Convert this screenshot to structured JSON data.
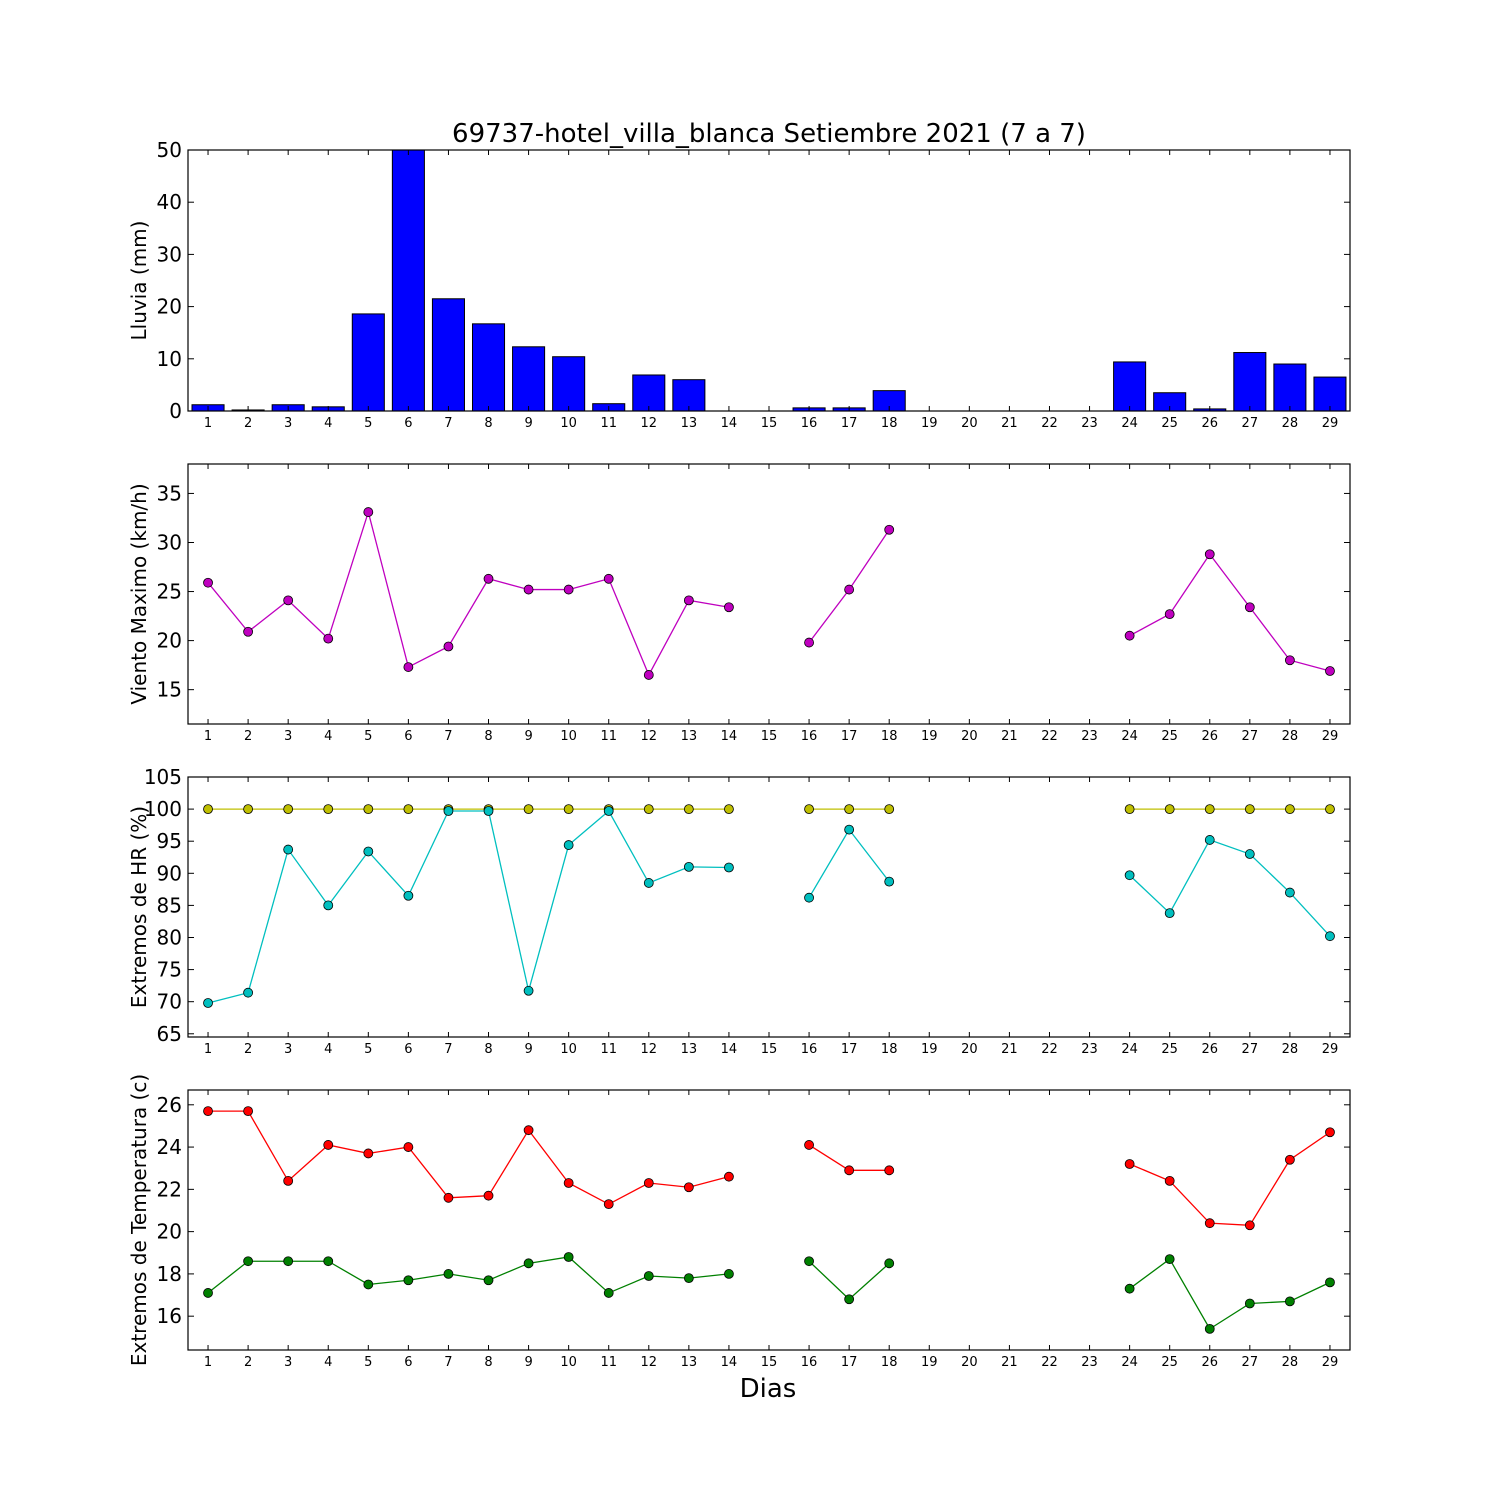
{
  "chart_data": [
    {
      "type": "bar",
      "title": "69737-hotel_villa_blanca Setiembre 2021  (7 a 7)",
      "ylabel": "Lluvia (mm)",
      "xlabel": "",
      "ylim": [
        0,
        50
      ],
      "yticks": [
        0,
        10,
        20,
        30,
        40,
        50
      ],
      "x": [
        1,
        2,
        3,
        4,
        5,
        6,
        7,
        8,
        9,
        10,
        11,
        12,
        13,
        14,
        15,
        16,
        17,
        18,
        19,
        20,
        21,
        22,
        23,
        24,
        25,
        26,
        27,
        28,
        29
      ],
      "series": [
        {
          "color": "#0000ff",
          "values": [
            1.2,
            0.2,
            1.2,
            0.8,
            18.6,
            50.0,
            21.5,
            16.7,
            12.3,
            10.4,
            1.4,
            6.9,
            6.0,
            0,
            0,
            0.6,
            0.6,
            3.9,
            0,
            0,
            0,
            0,
            0,
            9.4,
            3.5,
            0.4,
            11.2,
            9.0,
            6.5
          ]
        }
      ]
    },
    {
      "type": "line",
      "ylabel": "Viento Maximo (km/h)",
      "ylim": [
        11.5,
        38
      ],
      "yticks": [
        15,
        20,
        25,
        30,
        35
      ],
      "x": [
        1,
        2,
        3,
        4,
        5,
        6,
        7,
        8,
        9,
        10,
        11,
        12,
        13,
        14,
        15,
        16,
        17,
        18,
        19,
        20,
        21,
        22,
        23,
        24,
        25,
        26,
        27,
        28,
        29
      ],
      "series": [
        {
          "color": "#bf00bf",
          "values": [
            25.9,
            20.9,
            24.1,
            20.2,
            33.1,
            17.3,
            19.4,
            26.3,
            25.2,
            25.2,
            26.3,
            16.5,
            24.1,
            23.4,
            null,
            19.8,
            25.2,
            31.3,
            null,
            null,
            null,
            null,
            null,
            20.5,
            22.7,
            28.8,
            23.4,
            18.0,
            16.9
          ]
        }
      ]
    },
    {
      "type": "line",
      "ylabel": "Extremos de HR (%)",
      "ylim": [
        64.5,
        105
      ],
      "yticks": [
        65,
        70,
        75,
        80,
        85,
        90,
        95,
        100,
        105
      ],
      "x": [
        1,
        2,
        3,
        4,
        5,
        6,
        7,
        8,
        9,
        10,
        11,
        12,
        13,
        14,
        15,
        16,
        17,
        18,
        19,
        20,
        21,
        22,
        23,
        24,
        25,
        26,
        27,
        28,
        29
      ],
      "series": [
        {
          "color": "#bfbf00",
          "values": [
            100,
            100,
            100,
            100,
            100,
            100,
            100,
            100,
            100,
            100,
            100,
            100,
            100,
            100,
            null,
            100,
            100,
            100,
            null,
            null,
            null,
            null,
            null,
            100,
            100,
            100,
            100,
            100,
            100
          ]
        },
        {
          "color": "#00bfbf",
          "values": [
            69.8,
            71.4,
            93.7,
            85.0,
            93.4,
            86.5,
            99.7,
            99.7,
            71.7,
            94.4,
            99.7,
            88.5,
            91.0,
            90.9,
            null,
            86.2,
            96.8,
            88.7,
            null,
            null,
            null,
            null,
            null,
            89.7,
            83.8,
            95.2,
            93.0,
            87.0,
            80.2
          ]
        }
      ]
    },
    {
      "type": "line",
      "ylabel": "Extremos de Temperatura (c)",
      "xlabel": "Dias",
      "ylim": [
        14.4,
        26.7
      ],
      "yticks": [
        16,
        18,
        20,
        22,
        24,
        26
      ],
      "x": [
        1,
        2,
        3,
        4,
        5,
        6,
        7,
        8,
        9,
        10,
        11,
        12,
        13,
        14,
        15,
        16,
        17,
        18,
        19,
        20,
        21,
        22,
        23,
        24,
        25,
        26,
        27,
        28,
        29
      ],
      "series": [
        {
          "color": "#ff0000",
          "values": [
            25.7,
            25.7,
            22.4,
            24.1,
            23.7,
            24.0,
            21.6,
            21.7,
            24.8,
            22.3,
            21.3,
            22.3,
            22.1,
            22.6,
            null,
            24.1,
            22.9,
            22.9,
            null,
            null,
            null,
            null,
            null,
            23.2,
            22.4,
            20.4,
            20.3,
            23.4,
            24.7
          ]
        },
        {
          "color": "#008000",
          "values": [
            17.1,
            18.6,
            18.6,
            18.6,
            17.5,
            17.7,
            18.0,
            17.7,
            18.5,
            18.8,
            17.1,
            17.9,
            17.8,
            18.0,
            null,
            18.6,
            16.8,
            18.5,
            null,
            null,
            null,
            null,
            null,
            17.3,
            18.7,
            15.4,
            16.6,
            16.7,
            17.6
          ]
        }
      ]
    }
  ]
}
